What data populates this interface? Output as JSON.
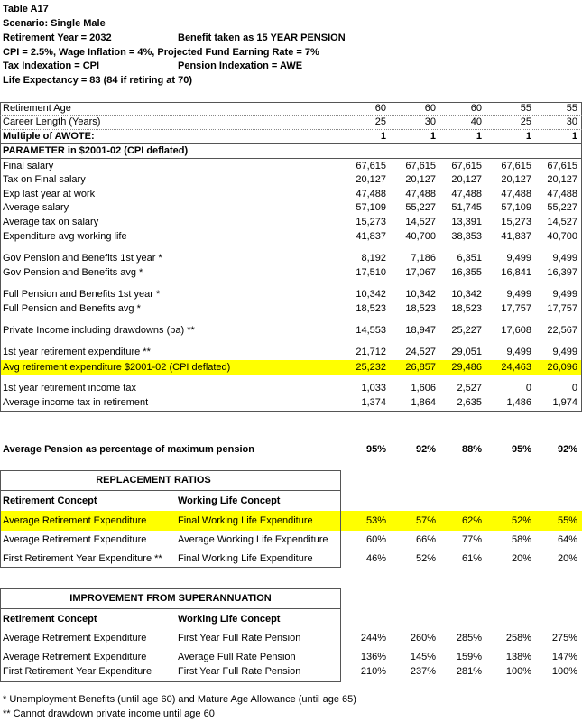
{
  "header": {
    "title": "Table A17",
    "scenario": "Scenario: Single Male",
    "retirement_year": "Retirement Year = 2032",
    "benefit": "Benefit taken as  15 YEAR PENSION",
    "cpi": "CPI = 2.5%, Wage Inflation = 4%, Projected Fund Earning Rate = 7%",
    "tax_indexation": "Tax Indexation = CPI",
    "pension_indexation": "Pension Indexation = AWE",
    "life_expectancy": "Life Expectancy = 83 (84 if retiring at 70)"
  },
  "main_table": {
    "rows": [
      [
        "Retirement Age",
        "60",
        "60",
        "60",
        "55",
        "55"
      ],
      [
        "Career Length (Years)",
        "25",
        "30",
        "40",
        "25",
        "30"
      ],
      [
        "Multiple of AWOTE:",
        "1",
        "1",
        "1",
        "1",
        "1"
      ],
      [
        "PARAMETER in $2001-02 (CPI deflated)"
      ],
      [
        "Final salary",
        "67,615",
        "67,615",
        "67,615",
        "67,615",
        "67,615"
      ],
      [
        "Tax on Final salary",
        "20,127",
        "20,127",
        "20,127",
        "20,127",
        "20,127"
      ],
      [
        "Exp last year at work",
        "47,488",
        "47,488",
        "47,488",
        "47,488",
        "47,488"
      ],
      [
        "Average salary",
        "57,109",
        "55,227",
        "51,745",
        "57,109",
        "55,227"
      ],
      [
        "Average tax on salary",
        "15,273",
        "14,527",
        "13,391",
        "15,273",
        "14,527"
      ],
      [
        "Expenditure avg working life",
        "41,837",
        "40,700",
        "38,353",
        "41,837",
        "40,700"
      ],
      [
        "Gov Pension and Benefits 1st year *",
        "8,192",
        "7,186",
        "6,351",
        "9,499",
        "9,499"
      ],
      [
        "Gov Pension and Benefits avg *",
        "17,510",
        "17,067",
        "16,355",
        "16,841",
        "16,397"
      ],
      [
        "Full Pension and Benefits 1st year *",
        "10,342",
        "10,342",
        "10,342",
        "9,499",
        "9,499"
      ],
      [
        "Full Pension and Benefits avg *",
        "18,523",
        "18,523",
        "18,523",
        "17,757",
        "17,757"
      ],
      [
        "Private Income including drawdowns (pa) **",
        "14,553",
        "18,947",
        "25,227",
        "17,608",
        "22,567"
      ],
      [
        "1st year retirement expenditure **",
        "21,712",
        "24,527",
        "29,051",
        "9,499",
        "9,499"
      ],
      [
        "Avg retirement expenditure $2001-02 (CPI deflated)",
        "25,232",
        "26,857",
        "29,486",
        "24,463",
        "26,096"
      ],
      [
        "1st year retirement income tax",
        "1,033",
        "1,606",
        "2,527",
        "0",
        "0"
      ],
      [
        "Average income tax in retirement",
        "1,374",
        "1,864",
        "2,635",
        "1,486",
        "1,974"
      ]
    ]
  },
  "pension_percentage": [
    "Average Pension as percentage of  maximum pension",
    "95%",
    "92%",
    "88%",
    "95%",
    "92%"
  ],
  "replacement_ratios": {
    "title": "REPLACEMENT RATIOS",
    "headers": [
      "Retirement Concept",
      "Working Life Concept"
    ],
    "rows": [
      [
        "Average Retirement Expenditure",
        "Final Working Life Expenditure",
        "53%",
        "57%",
        "62%",
        "52%",
        "55%"
      ],
      [
        "Average Retirement Expenditure",
        "Average Working Life Expenditure",
        "60%",
        "66%",
        "77%",
        "58%",
        "64%"
      ],
      [
        "First Retirement Year Expenditure **",
        "Final Working Life Expenditure",
        "46%",
        "52%",
        "61%",
        "20%",
        "20%"
      ]
    ]
  },
  "improvement": {
    "title": "IMPROVEMENT FROM SUPERANNUATION",
    "headers": [
      "Retirement Concept",
      "Working Life Concept"
    ],
    "rows": [
      [
        "Average Retirement Expenditure",
        "First Year Full Rate Pension",
        "244%",
        "260%",
        "285%",
        "258%",
        "275%"
      ],
      [
        "Average Retirement Expenditure",
        "Average Full Rate Pension",
        "136%",
        "145%",
        "159%",
        "138%",
        "147%"
      ],
      [
        "First Retirement Year Expenditure",
        "First Year Full Rate Pension",
        "210%",
        "237%",
        "281%",
        "100%",
        "100%"
      ]
    ]
  },
  "footnotes": [
    "* Unemployment Benefits (until age 60) and Mature Age Allowance (until age 65)",
    "** Cannot drawdown private income until age 60"
  ]
}
